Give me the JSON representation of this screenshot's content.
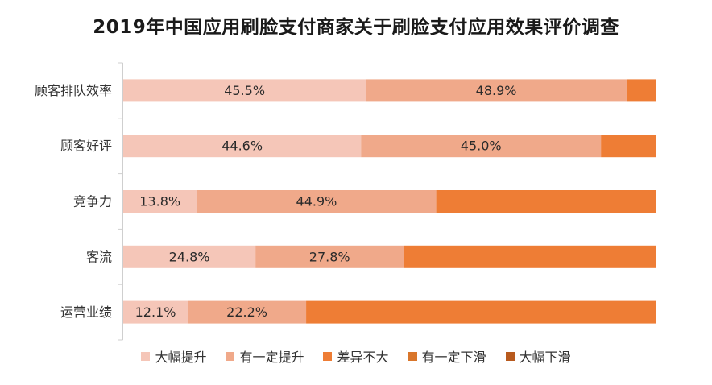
{
  "chart_data": {
    "type": "bar",
    "orientation": "horizontal",
    "stacked": true,
    "title": "2019年中国应用刷脸支付商家关于刷脸支付应用效果评价调查",
    "categories": [
      "顾客排队效率",
      "顾客好评",
      "竞争力",
      "客流",
      "运营业绩"
    ],
    "series": [
      {
        "name": "大幅提升",
        "color": "#F5C6B8",
        "values": [
          45.5,
          44.6,
          13.8,
          24.8,
          12.1
        ]
      },
      {
        "name": "有一定提升",
        "color": "#F0A98A",
        "values": [
          48.9,
          45.0,
          44.9,
          27.8,
          22.2
        ]
      },
      {
        "name": "差异不大",
        "color": "#EE7D35",
        "values": [
          5.6,
          10.4,
          41.3,
          47.4,
          65.7
        ]
      },
      {
        "name": "有一定下滑",
        "color": "#D9762B",
        "values": [
          0,
          0,
          0,
          0,
          0
        ]
      },
      {
        "name": "大幅下滑",
        "color": "#B85A1E",
        "values": [
          0,
          0,
          0,
          0,
          0
        ]
      }
    ],
    "data_labels": [
      [
        "45.5%",
        "48.9%",
        "",
        "",
        ""
      ],
      [
        "44.6%",
        "45.0%",
        "",
        "",
        ""
      ],
      [
        "13.8%",
        "44.9%",
        "",
        "",
        ""
      ],
      [
        "24.8%",
        "27.8%",
        "",
        "",
        ""
      ],
      [
        "12.1%",
        "22.2%",
        "",
        "",
        ""
      ]
    ],
    "xlim": [
      0,
      100
    ],
    "grid": false,
    "legend_position": "bottom"
  }
}
